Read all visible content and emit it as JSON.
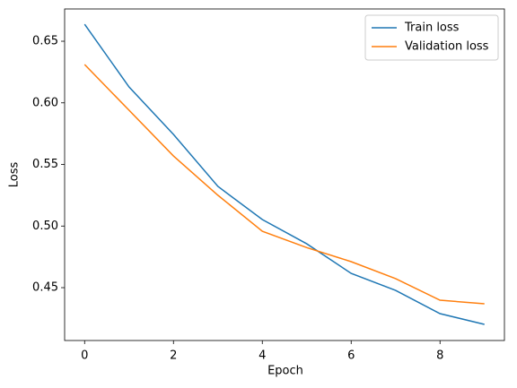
{
  "chart_data": {
    "type": "line",
    "x_label": "Epoch",
    "y_label": "Loss",
    "x": [
      0,
      1,
      2,
      3,
      4,
      5,
      6,
      7,
      8,
      9
    ],
    "series": [
      {
        "name": "Train loss",
        "color": "#1f77b4",
        "values": [
          0.6638,
          0.6129,
          0.5744,
          0.5322,
          0.5053,
          0.4856,
          0.4616,
          0.4478,
          0.4289,
          0.4202
        ]
      },
      {
        "name": "Validation loss",
        "color": "#ff7f0e",
        "values": [
          0.6311,
          0.594,
          0.5569,
          0.525,
          0.4958,
          0.4825,
          0.4711,
          0.4573,
          0.4398,
          0.4369
        ]
      }
    ],
    "xlim": [
      -0.45,
      9.45
    ],
    "ylim": [
      0.4071,
      0.6762
    ],
    "xticks": [
      0,
      2,
      4,
      6,
      8
    ],
    "yticks": [
      0.45,
      {
        "value": 0.5,
        "label": "0.50"
      },
      0.55,
      {
        "value": 0.6,
        "label": "0.60"
      },
      0.65
    ],
    "legend": "upper right",
    "grid": false
  }
}
